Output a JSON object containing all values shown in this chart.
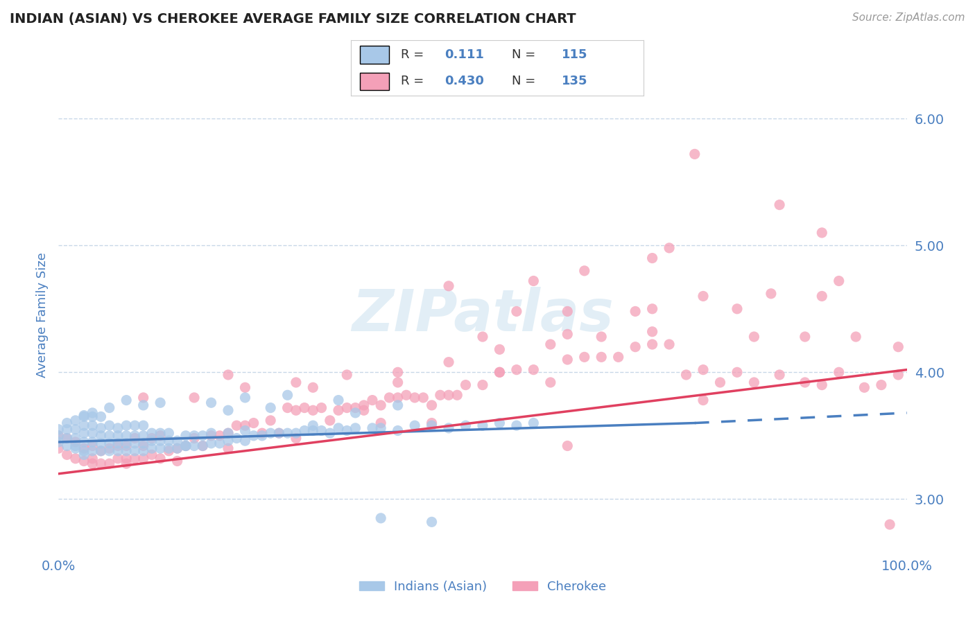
{
  "title": "INDIAN (ASIAN) VS CHEROKEE AVERAGE FAMILY SIZE CORRELATION CHART",
  "source": "Source: ZipAtlas.com",
  "ylabel": "Average Family Size",
  "xlim": [
    0,
    1
  ],
  "ylim": [
    2.55,
    6.35
  ],
  "yticks": [
    3.0,
    4.0,
    5.0,
    6.0
  ],
  "xticks": [
    0.0,
    0.1,
    0.2,
    0.3,
    0.4,
    0.5,
    0.6,
    0.7,
    0.8,
    0.9,
    1.0
  ],
  "xticklabels": [
    "0.0%",
    "",
    "",
    "",
    "",
    "",
    "",
    "",
    "",
    "",
    "100.0%"
  ],
  "legend_labels": [
    "Indians (Asian)",
    "Cherokee"
  ],
  "R_indian": 0.111,
  "N_indian": 115,
  "R_cherokee": 0.43,
  "N_cherokee": 135,
  "indian_color": "#a8c8e8",
  "cherokee_color": "#f4a0b8",
  "indian_line_color": "#4a7fc0",
  "cherokee_line_color": "#e04060",
  "grid_color": "#c8d8e8",
  "background_color": "#ffffff",
  "title_color": "#222222",
  "axis_label_color": "#4a7fc0",
  "tick_color": "#4a7fc0",
  "watermark": "ZIPatlas",
  "indian_trendline": [
    0.0,
    0.75,
    3.45,
    3.6
  ],
  "indian_trendline_dash": [
    0.75,
    1.0,
    3.6,
    3.68
  ],
  "cherokee_trendline": [
    0.0,
    1.0,
    3.2,
    4.02
  ],
  "indian_scatter_x": [
    0.0,
    0.0,
    0.0,
    0.01,
    0.01,
    0.01,
    0.01,
    0.02,
    0.02,
    0.02,
    0.02,
    0.02,
    0.03,
    0.03,
    0.03,
    0.03,
    0.03,
    0.03,
    0.04,
    0.04,
    0.04,
    0.04,
    0.04,
    0.05,
    0.05,
    0.05,
    0.05,
    0.05,
    0.06,
    0.06,
    0.06,
    0.06,
    0.07,
    0.07,
    0.07,
    0.07,
    0.08,
    0.08,
    0.08,
    0.08,
    0.09,
    0.09,
    0.09,
    0.09,
    0.1,
    0.1,
    0.1,
    0.1,
    0.11,
    0.11,
    0.11,
    0.12,
    0.12,
    0.12,
    0.13,
    0.13,
    0.13,
    0.14,
    0.14,
    0.15,
    0.15,
    0.16,
    0.16,
    0.17,
    0.17,
    0.18,
    0.18,
    0.19,
    0.2,
    0.2,
    0.21,
    0.22,
    0.22,
    0.23,
    0.24,
    0.25,
    0.26,
    0.27,
    0.28,
    0.29,
    0.3,
    0.31,
    0.32,
    0.33,
    0.34,
    0.35,
    0.37,
    0.38,
    0.4,
    0.42,
    0.44,
    0.46,
    0.48,
    0.5,
    0.52,
    0.54,
    0.56,
    0.38,
    0.44,
    0.3,
    0.2,
    0.25,
    0.35,
    0.15,
    0.08,
    0.1,
    0.12,
    0.06,
    0.04,
    0.03,
    0.22,
    0.18,
    0.27,
    0.33,
    0.4
  ],
  "indian_scatter_y": [
    3.5,
    3.45,
    3.55,
    3.42,
    3.48,
    3.55,
    3.6,
    3.4,
    3.48,
    3.55,
    3.62,
    3.42,
    3.38,
    3.45,
    3.52,
    3.58,
    3.65,
    3.35,
    3.38,
    3.45,
    3.52,
    3.58,
    3.65,
    3.38,
    3.44,
    3.5,
    3.56,
    3.65,
    3.38,
    3.44,
    3.5,
    3.58,
    3.38,
    3.44,
    3.5,
    3.56,
    3.38,
    3.44,
    3.5,
    3.58,
    3.38,
    3.44,
    3.5,
    3.58,
    3.38,
    3.44,
    3.5,
    3.58,
    3.4,
    3.46,
    3.52,
    3.4,
    3.46,
    3.52,
    3.4,
    3.46,
    3.52,
    3.4,
    3.46,
    3.42,
    3.5,
    3.42,
    3.5,
    3.42,
    3.5,
    3.44,
    3.52,
    3.44,
    3.46,
    3.52,
    3.48,
    3.46,
    3.54,
    3.5,
    3.5,
    3.52,
    3.52,
    3.52,
    3.52,
    3.54,
    3.54,
    3.54,
    3.52,
    3.56,
    3.54,
    3.56,
    3.56,
    3.56,
    3.54,
    3.58,
    3.58,
    3.56,
    3.58,
    3.58,
    3.6,
    3.58,
    3.6,
    2.85,
    2.82,
    3.58,
    3.7,
    3.72,
    3.68,
    3.42,
    3.78,
    3.74,
    3.76,
    3.72,
    3.68,
    3.66,
    3.8,
    3.76,
    3.82,
    3.78,
    3.74
  ],
  "cherokee_scatter_x": [
    0.0,
    0.0,
    0.01,
    0.01,
    0.02,
    0.02,
    0.03,
    0.03,
    0.04,
    0.04,
    0.05,
    0.05,
    0.06,
    0.06,
    0.07,
    0.07,
    0.08,
    0.08,
    0.09,
    0.09,
    0.1,
    0.1,
    0.11,
    0.11,
    0.12,
    0.12,
    0.13,
    0.14,
    0.15,
    0.16,
    0.17,
    0.18,
    0.19,
    0.2,
    0.21,
    0.22,
    0.23,
    0.24,
    0.25,
    0.26,
    0.27,
    0.28,
    0.29,
    0.3,
    0.31,
    0.32,
    0.33,
    0.34,
    0.35,
    0.36,
    0.37,
    0.38,
    0.39,
    0.4,
    0.41,
    0.42,
    0.43,
    0.44,
    0.45,
    0.46,
    0.47,
    0.48,
    0.5,
    0.52,
    0.54,
    0.56,
    0.58,
    0.6,
    0.62,
    0.64,
    0.66,
    0.68,
    0.7,
    0.72,
    0.74,
    0.76,
    0.78,
    0.8,
    0.82,
    0.85,
    0.88,
    0.9,
    0.92,
    0.95,
    0.97,
    0.99,
    0.1,
    0.16,
    0.22,
    0.28,
    0.34,
    0.4,
    0.46,
    0.52,
    0.58,
    0.64,
    0.7,
    0.76,
    0.82,
    0.88,
    0.94,
    0.99,
    0.2,
    0.3,
    0.4,
    0.5,
    0.6,
    0.7,
    0.8,
    0.9,
    0.04,
    0.08,
    0.14,
    0.2,
    0.28,
    0.36,
    0.44,
    0.52,
    0.6,
    0.68,
    0.76,
    0.84,
    0.92,
    0.98,
    0.56,
    0.72,
    0.85,
    0.6,
    0.75,
    0.9,
    0.62,
    0.7,
    0.38,
    0.46,
    0.54
  ],
  "cherokee_scatter_y": [
    3.4,
    3.5,
    3.35,
    3.48,
    3.32,
    3.45,
    3.3,
    3.4,
    3.28,
    3.42,
    3.28,
    3.38,
    3.28,
    3.4,
    3.32,
    3.42,
    3.28,
    3.42,
    3.32,
    3.48,
    3.32,
    3.42,
    3.35,
    3.48,
    3.32,
    3.5,
    3.38,
    3.4,
    3.42,
    3.48,
    3.42,
    3.5,
    3.5,
    3.52,
    3.58,
    3.58,
    3.6,
    3.52,
    3.62,
    3.52,
    3.72,
    3.7,
    3.72,
    3.7,
    3.72,
    3.62,
    3.7,
    3.72,
    3.72,
    3.74,
    3.78,
    3.74,
    3.8,
    3.8,
    3.82,
    3.8,
    3.8,
    3.74,
    3.82,
    3.82,
    3.82,
    3.9,
    3.9,
    4.0,
    4.02,
    4.02,
    3.92,
    4.1,
    4.12,
    4.12,
    4.12,
    4.2,
    4.22,
    4.22,
    3.98,
    4.02,
    3.92,
    4.0,
    3.92,
    3.98,
    3.92,
    3.9,
    4.0,
    3.88,
    3.9,
    3.98,
    3.8,
    3.8,
    3.88,
    3.92,
    3.98,
    4.0,
    4.08,
    4.18,
    4.22,
    4.28,
    4.32,
    3.78,
    4.28,
    4.28,
    4.28,
    4.2,
    3.98,
    3.88,
    3.92,
    4.28,
    4.48,
    4.5,
    4.5,
    4.6,
    3.32,
    3.32,
    3.3,
    3.4,
    3.48,
    3.7,
    3.6,
    4.0,
    4.3,
    4.48,
    4.6,
    4.62,
    4.72,
    2.8,
    4.72,
    4.98,
    5.32,
    3.42,
    5.72,
    5.1,
    4.8,
    4.9,
    3.6,
    4.68,
    4.48
  ]
}
